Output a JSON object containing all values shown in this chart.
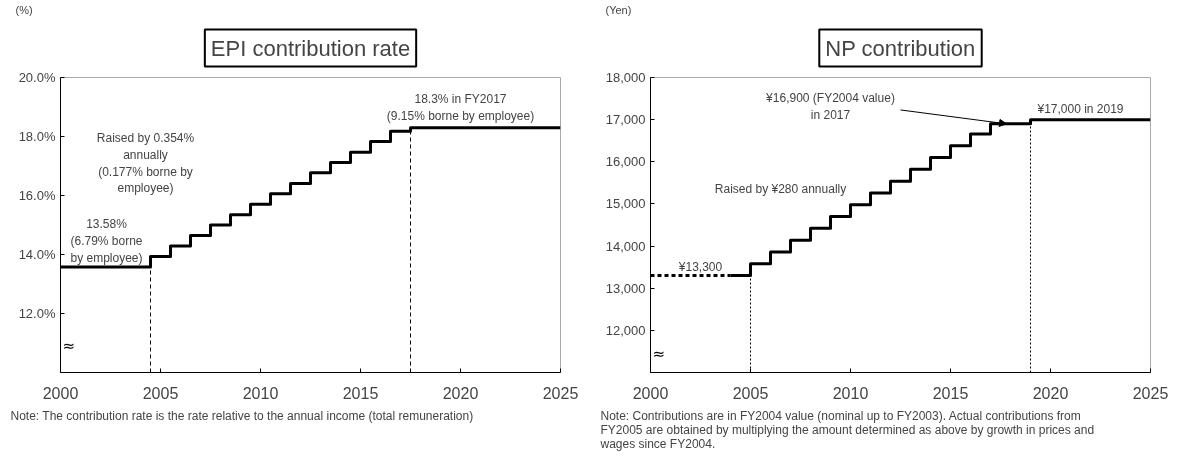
{
  "chart_data": [
    {
      "type": "step",
      "title": "EPI contribution rate",
      "ylabel": "(%)",
      "x": [
        2000,
        2004.5,
        2005.5,
        2006.5,
        2007.5,
        2008.5,
        2009.5,
        2010.5,
        2011.5,
        2012.5,
        2013.5,
        2014.5,
        2015.5,
        2016.5,
        2017.5,
        2025
      ],
      "series": [
        {
          "color": "#000000",
          "line_style": "solid",
          "values": [
            13.58,
            13.93,
            14.29,
            14.64,
            15.0,
            15.35,
            15.7,
            16.06,
            16.41,
            16.77,
            17.12,
            17.47,
            17.83,
            18.18,
            18.3,
            18.3
          ]
        }
      ],
      "xlim": [
        2000,
        2025
      ],
      "xticks": [
        2000,
        2005,
        2010,
        2015,
        2020,
        2025
      ],
      "ylim": [
        10,
        20
      ],
      "yticks": [
        {
          "value": 12,
          "label": "12.0%"
        },
        {
          "value": 14,
          "label": "14.0%"
        },
        {
          "value": 16,
          "label": "16.0%"
        },
        {
          "value": 18,
          "label": "18.0%"
        },
        {
          "value": 20,
          "label": "20.0%"
        }
      ],
      "grid": false,
      "ref_lines": [
        {
          "axis": "x",
          "value": 2004.5,
          "label": null,
          "line_style": "dashed",
          "color": "#000000"
        },
        {
          "axis": "x",
          "value": 2017.5,
          "label": null,
          "line_style": "dashed",
          "color": "#000000"
        }
      ],
      "annotations": [
        {
          "text": "13.58%\n(6.79% borne\nby employee)",
          "x": 2002.3,
          "y": 13.65
        },
        "Raised by 0.354%\nannually\n(0.177% borne by\nemployee)",
        {
          "text": "18.3% in FY2017\n(9.15% borne by employee)",
          "x": 2020,
          "y": 18.45
        },
        "≈",
        "Note: The contribution rate is the rate relative to the annual income (total remuneration)"
      ]
    },
    {
      "type": "step",
      "title": "NP contribution",
      "ylabel": "(Yen)",
      "series": [
        {
          "color": "#000000",
          "line_style": "dashed",
          "x": [
            2000,
            2004
          ],
          "values": [
            13300,
            13300
          ]
        },
        {
          "color": "#000000",
          "line_style": "solid",
          "x": [
            2004,
            2005,
            2006,
            2007,
            2008,
            2009,
            2010,
            2011,
            2012,
            2013,
            2014,
            2015,
            2016,
            2017,
            2019,
            2025
          ],
          "values": [
            13300,
            13580,
            13860,
            14140,
            14420,
            14700,
            14980,
            15260,
            15540,
            15820,
            16100,
            16380,
            16660,
            16900,
            17000,
            17000
          ]
        }
      ],
      "xlim": [
        2000,
        2025
      ],
      "xticks": [
        2000,
        2005,
        2010,
        2015,
        2020,
        2025
      ],
      "ylim": [
        11000,
        18000
      ],
      "yticks": [
        {
          "value": 12000,
          "label": "12,000"
        },
        {
          "value": 13000,
          "label": "13,000"
        },
        {
          "value": 14000,
          "label": "14,000"
        },
        {
          "value": 15000,
          "label": "15,000"
        },
        {
          "value": 16000,
          "label": "16,000"
        },
        {
          "value": 17000,
          "label": "17,000"
        },
        {
          "value": 18000,
          "label": "18,000"
        }
      ],
      "grid": false,
      "ref_lines": [
        {
          "axis": "x",
          "value": 2005,
          "label": null,
          "line_style": "dotted",
          "color": "#000000"
        },
        {
          "axis": "x",
          "value": 2019,
          "label": null,
          "line_style": "dotted",
          "color": "#000000"
        }
      ],
      "annotations": [
        "¥13,300",
        "Raised by ¥280 annually",
        {
          "text": "¥16,900 (FY2004 value)\nin 2017",
          "x": 2017.8,
          "y": 16900
        },
        "¥17,000 in 2019",
        "≈",
        "Note: Contributions are in FY2004 value (nominal up to FY2003). Actual contributions from\nFY2005 are obtained by multiplying the amount determined as above by growth in prices and\nwages since FY2004."
      ]
    }
  ]
}
